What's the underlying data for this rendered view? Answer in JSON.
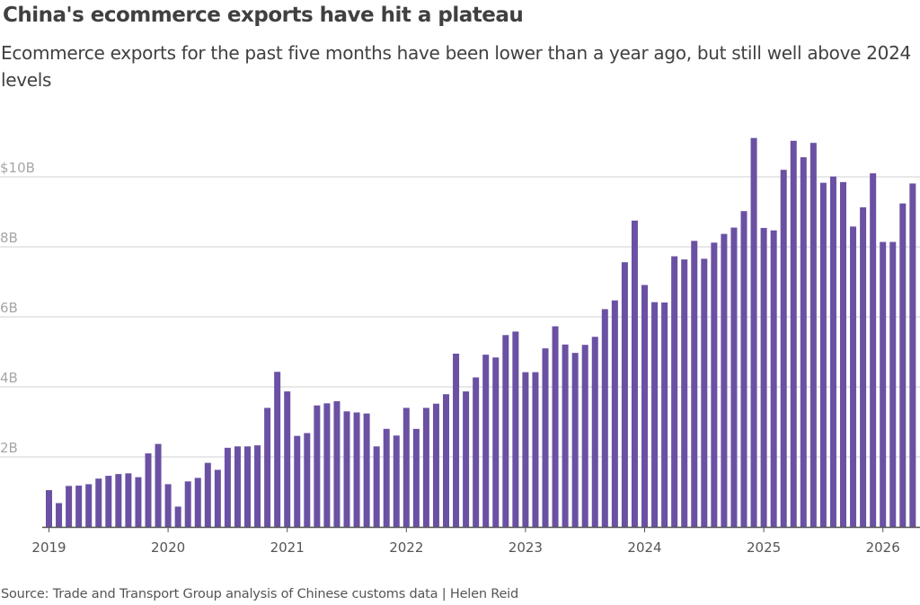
{
  "chart_data": {
    "type": "bar",
    "title": "China's ecommerce exports have hit a plateau",
    "subtitle": "Ecommerce exports for the past five months have been lower than a year ago, but still well above 2024 levels",
    "source": "Source: Trade and Transport Group analysis of Chinese customs data | Helen Reid",
    "bar_color": "#6a51a3",
    "y_ticks": [
      {
        "value": 2,
        "label": "2B"
      },
      {
        "value": 4,
        "label": "4B"
      },
      {
        "value": 6,
        "label": "6B"
      },
      {
        "value": 8,
        "label": "8B"
      },
      {
        "value": 10,
        "label": "$10B"
      }
    ],
    "x_ticks": [
      "2019",
      "2020",
      "2021",
      "2022",
      "2023",
      "2024",
      "2025",
      "2026"
    ],
    "ylim": [
      0,
      11.5
    ],
    "grid": true,
    "start": "2019-01",
    "frequency": "monthly",
    "values": [
      1.05,
      0.68,
      1.17,
      1.18,
      1.22,
      1.38,
      1.46,
      1.51,
      1.53,
      1.42,
      2.1,
      2.37,
      1.22,
      0.58,
      1.3,
      1.4,
      1.83,
      1.63,
      2.26,
      2.3,
      2.3,
      2.33,
      3.4,
      4.43,
      3.87,
      2.6,
      2.68,
      3.47,
      3.53,
      3.59,
      3.3,
      3.27,
      3.24,
      2.3,
      2.8,
      2.61,
      3.4,
      2.8,
      3.4,
      3.52,
      3.79,
      4.95,
      3.87,
      4.27,
      4.92,
      4.84,
      5.48,
      5.58,
      4.42,
      4.42,
      5.1,
      5.73,
      5.21,
      4.97,
      5.2,
      5.43,
      6.22,
      6.47,
      7.56,
      8.75,
      6.91,
      6.42,
      6.41,
      7.73,
      7.64,
      8.17,
      7.66,
      8.12,
      8.37,
      8.55,
      9.02,
      11.11,
      8.54,
      8.47,
      10.2,
      11.03,
      10.56,
      10.97,
      9.83,
      10.01,
      9.85,
      8.58,
      9.13,
      10.1,
      8.14,
      8.14,
      9.24,
      9.81
    ]
  }
}
